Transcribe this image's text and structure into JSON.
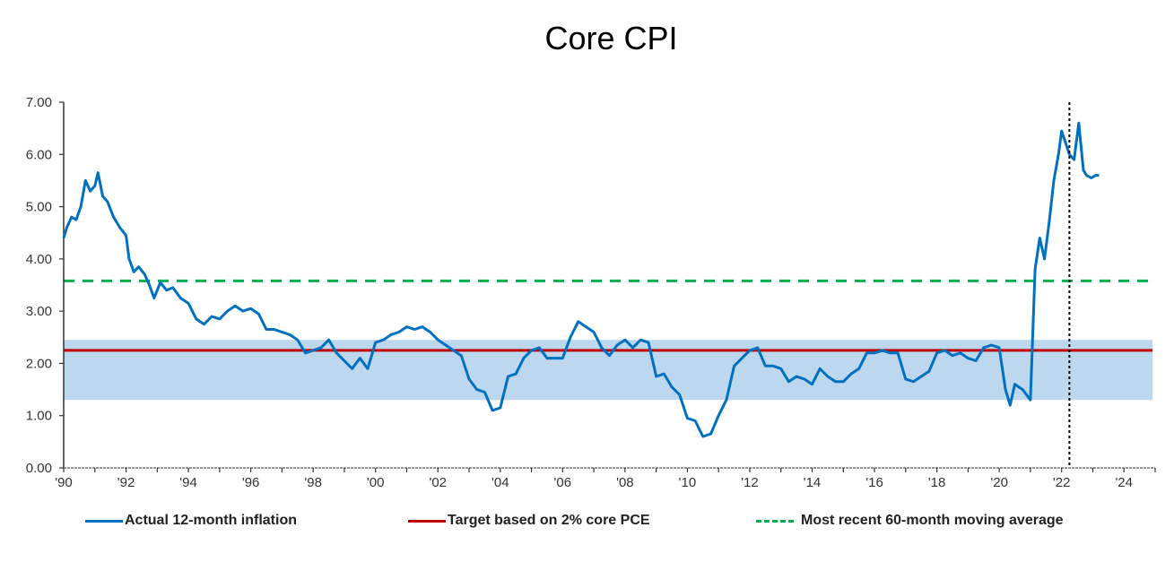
{
  "chart_data": {
    "type": "line",
    "title": "Core CPI",
    "xlabel": "",
    "ylabel": "",
    "xlim": [
      1990,
      2025
    ],
    "ylim": [
      0,
      7
    ],
    "grid": false,
    "y_ticks": [
      "0.00",
      "1.00",
      "2.00",
      "3.00",
      "4.00",
      "5.00",
      "6.00",
      "7.00"
    ],
    "x_ticks": [
      "'90",
      "'92",
      "'94",
      "'96",
      "'98",
      "'00",
      "'02",
      "'04",
      "'06",
      "'08",
      "'10",
      "'12",
      "'14",
      "'16",
      "'18",
      "'20",
      "'22",
      "'24"
    ],
    "legend_position": "bottom",
    "series": [
      {
        "name": "Actual 12-month inflation",
        "color": "#0070C0",
        "x": [
          1990.0,
          1990.1,
          1990.25,
          1990.4,
          1990.55,
          1990.7,
          1990.85,
          1991.0,
          1991.1,
          1991.25,
          1991.4,
          1991.6,
          1991.8,
          1992.0,
          1992.1,
          1992.25,
          1992.4,
          1992.6,
          1992.75,
          1992.9,
          1993.1,
          1993.3,
          1993.5,
          1993.75,
          1994.0,
          1994.25,
          1994.5,
          1994.75,
          1995.0,
          1995.25,
          1995.5,
          1995.75,
          1996.0,
          1996.25,
          1996.5,
          1996.75,
          1997.0,
          1997.25,
          1997.5,
          1997.75,
          1998.0,
          1998.25,
          1998.5,
          1998.75,
          1999.0,
          1999.25,
          1999.5,
          1999.75,
          2000.0,
          2000.25,
          2000.5,
          2000.75,
          2001.0,
          2001.25,
          2001.5,
          2001.75,
          2002.0,
          2002.25,
          2002.5,
          2002.75,
          2003.0,
          2003.25,
          2003.5,
          2003.75,
          2004.0,
          2004.25,
          2004.5,
          2004.75,
          2005.0,
          2005.25,
          2005.5,
          2005.75,
          2006.0,
          2006.25,
          2006.5,
          2006.75,
          2007.0,
          2007.25,
          2007.5,
          2007.75,
          2008.0,
          2008.25,
          2008.5,
          2008.75,
          2009.0,
          2009.25,
          2009.5,
          2009.75,
          2010.0,
          2010.25,
          2010.5,
          2010.75,
          2011.0,
          2011.25,
          2011.5,
          2011.75,
          2012.0,
          2012.25,
          2012.5,
          2012.75,
          2013.0,
          2013.25,
          2013.5,
          2013.75,
          2014.0,
          2014.25,
          2014.5,
          2014.75,
          2015.0,
          2015.25,
          2015.5,
          2015.75,
          2016.0,
          2016.25,
          2016.5,
          2016.75,
          2017.0,
          2017.25,
          2017.5,
          2017.75,
          2018.0,
          2018.25,
          2018.5,
          2018.75,
          2019.0,
          2019.25,
          2019.5,
          2019.75,
          2020.0,
          2020.2,
          2020.35,
          2020.5,
          2020.75,
          2021.0,
          2021.15,
          2021.3,
          2021.45,
          2021.6,
          2021.75,
          2021.9,
          2022.0,
          2022.25,
          2022.4,
          2022.55,
          2022.7,
          2022.8,
          2022.95,
          2023.1,
          2023.2
        ],
        "values": [
          4.4,
          4.6,
          4.8,
          4.75,
          5.0,
          5.5,
          5.3,
          5.4,
          5.65,
          5.2,
          5.1,
          4.8,
          4.6,
          4.45,
          4.0,
          3.75,
          3.85,
          3.7,
          3.5,
          3.25,
          3.55,
          3.4,
          3.45,
          3.25,
          3.15,
          2.85,
          2.75,
          2.9,
          2.85,
          3.0,
          3.1,
          3.0,
          3.05,
          2.95,
          2.65,
          2.65,
          2.6,
          2.55,
          2.45,
          2.2,
          2.25,
          2.3,
          2.45,
          2.2,
          2.05,
          1.9,
          2.1,
          1.9,
          2.4,
          2.45,
          2.55,
          2.6,
          2.7,
          2.65,
          2.7,
          2.6,
          2.45,
          2.35,
          2.25,
          2.15,
          1.7,
          1.5,
          1.45,
          1.1,
          1.15,
          1.75,
          1.8,
          2.1,
          2.25,
          2.3,
          2.1,
          2.1,
          2.1,
          2.5,
          2.8,
          2.7,
          2.6,
          2.3,
          2.15,
          2.35,
          2.45,
          2.3,
          2.45,
          2.4,
          1.75,
          1.8,
          1.55,
          1.4,
          0.95,
          0.9,
          0.6,
          0.65,
          1.0,
          1.3,
          1.95,
          2.1,
          2.25,
          2.3,
          1.95,
          1.95,
          1.9,
          1.65,
          1.75,
          1.7,
          1.6,
          1.9,
          1.75,
          1.65,
          1.65,
          1.8,
          1.9,
          2.2,
          2.2,
          2.25,
          2.2,
          2.2,
          1.7,
          1.65,
          1.75,
          1.85,
          2.2,
          2.25,
          2.15,
          2.2,
          2.1,
          2.05,
          2.3,
          2.35,
          2.3,
          1.5,
          1.2,
          1.6,
          1.5,
          1.3,
          3.8,
          4.4,
          4.0,
          4.7,
          5.5,
          6.0,
          6.45,
          6.0,
          5.9,
          6.6,
          5.7,
          5.6,
          5.55,
          5.6,
          5.6
        ]
      },
      {
        "name": "Target based on 2% core PCE",
        "color": "#C00000",
        "value": 2.25
      },
      {
        "name": "Most recent 60-month moving average",
        "color": "#00B050",
        "style": "dashed",
        "value": 3.58
      }
    ],
    "annotations": [
      {
        "type": "shaded-band",
        "ymin": 1.3,
        "ymax": 2.45,
        "color": "#BDD7EE"
      },
      {
        "type": "vertical-dotted-line",
        "x": 2022.25,
        "color": "#000000"
      }
    ]
  },
  "legend": [
    {
      "label": "Actual 12-month inflation",
      "color": "#0070C0",
      "style": "solid"
    },
    {
      "label": "Target based on 2% core PCE",
      "color": "#C00000",
      "style": "solid"
    },
    {
      "label": "Most recent 60-month moving average",
      "color": "#00B050",
      "style": "dashed"
    }
  ]
}
